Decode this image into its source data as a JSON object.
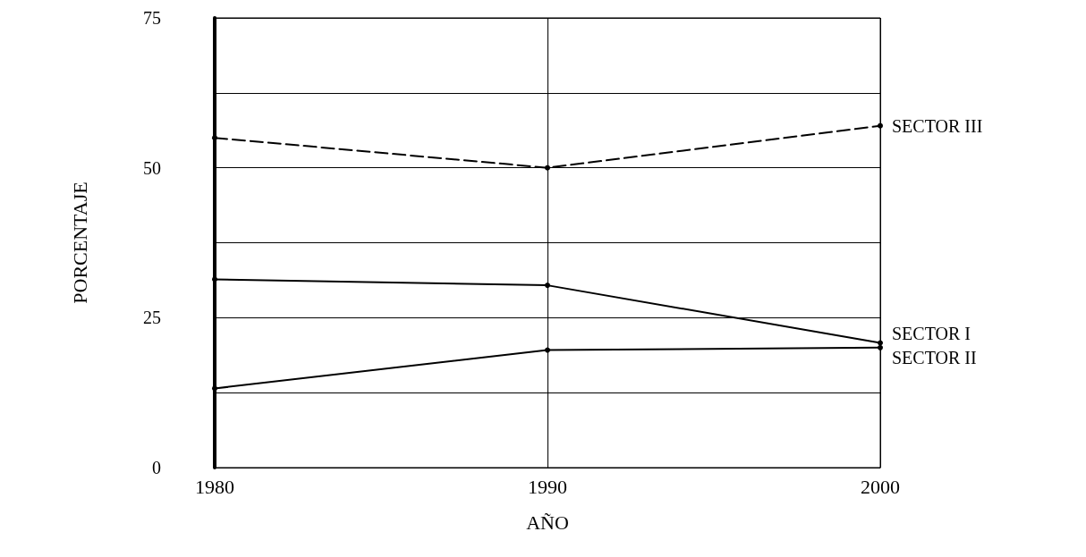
{
  "chart_data": {
    "type": "line",
    "xlabel": "AÑO",
    "ylabel": "PORCENTAJE",
    "categories": [
      "1980",
      "1990",
      "2000"
    ],
    "series": [
      {
        "name": "SECTOR III",
        "color": "#000000",
        "line_style": "dashed",
        "values": [
          55,
          50,
          57
        ]
      },
      {
        "name": "SECTOR I",
        "color": "#000000",
        "line_style": "solid",
        "values": [
          31.4,
          30.4,
          20.8
        ]
      },
      {
        "name": "SECTOR II",
        "color": "#000000",
        "line_style": "solid",
        "values": [
          13.2,
          19.6,
          20
        ]
      }
    ],
    "ylim": [
      0,
      75
    ],
    "yticks": [
      0,
      {
        "value": 12.5,
        "label": null
      },
      25,
      {
        "value": 37.5,
        "label": null
      },
      50,
      {
        "value": 62.5,
        "label": null
      },
      75
    ],
    "grid": true,
    "marker": "circle",
    "legend": false
  }
}
